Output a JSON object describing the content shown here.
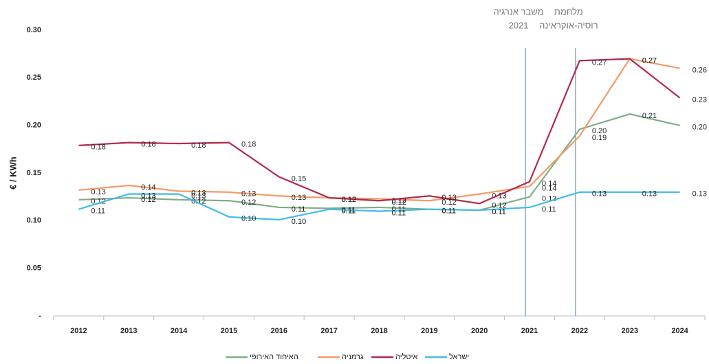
{
  "chart_data": {
    "type": "line",
    "y_label": "€ / KWh",
    "categories": [
      "2012",
      "2013",
      "2014",
      "2015",
      "2016",
      "2017",
      "2018",
      "2019",
      "2020",
      "2021",
      "2022",
      "2023",
      "2024"
    ],
    "ylim": [
      0,
      0.3
    ],
    "yticks": [
      {
        "value": 0,
        "label": "-"
      },
      0.05,
      {
        "value": 0.1,
        "label": "0.10"
      },
      0.15,
      {
        "value": 0.2,
        "label": "0.20"
      },
      0.25,
      {
        "value": 0.3,
        "label": "0.30"
      }
    ],
    "series": [
      {
        "name": "האיחוד האירופי",
        "color": "#7fae84",
        "values": [
          0.122,
          0.124,
          0.122,
          0.121,
          0.114,
          0.113,
          0.114,
          0.112,
          0.111,
          0.125,
          0.196,
          0.212,
          0.2
        ],
        "value_labels": [
          "0.12",
          "0.12",
          "0.12",
          "0.12",
          "0.11",
          "0.11",
          "0.11",
          "0.11",
          "0.11",
          "0.13",
          "0.20",
          "0.21",
          "0.20"
        ]
      },
      {
        "name": "גרמניה",
        "color": "#f59a64",
        "values": [
          0.132,
          0.137,
          0.131,
          0.13,
          0.126,
          0.124,
          0.123,
          0.121,
          0.128,
          0.136,
          0.189,
          0.27,
          0.26
        ],
        "value_labels": [
          "0.13",
          "0.14",
          "0.13",
          "0.13",
          "0.13",
          "0.12",
          "0.12",
          "0.12",
          "0.13",
          "0.14",
          "0.19",
          "0.27",
          "0.26"
        ]
      },
      {
        "name": "איטליה",
        "color": "#b3294c",
        "values": [
          0.179,
          0.182,
          0.181,
          0.182,
          0.146,
          0.124,
          0.121,
          0.126,
          0.118,
          0.141,
          0.268,
          0.27,
          0.229
        ],
        "value_labels": [
          "0.18",
          "0.18",
          "0.18",
          "0.18",
          "0.15",
          "0.12",
          "0.12",
          "0.13",
          "0.12",
          "0.14",
          "0.27",
          "0.27",
          "0.23"
        ]
      },
      {
        "name": "ישראל",
        "color": "#3fbbe9",
        "values": [
          0.112,
          0.128,
          0.128,
          0.104,
          0.101,
          0.112,
          0.11,
          0.112,
          0.111,
          0.114,
          0.13,
          0.13,
          0.13
        ],
        "value_labels": [
          "0.11",
          "0.13",
          "0.13",
          "0.10",
          "0.10",
          "0.11",
          "0.11",
          "0.11",
          "0.11",
          "0.11",
          "0.13",
          "0.13",
          "0.13"
        ]
      }
    ],
    "annotations": [
      {
        "x": "2021",
        "lines": [
          "משבר אנרגיה",
          "2021"
        ]
      },
      {
        "x": "2022",
        "lines": [
          "מלחמת",
          "רוסיה-אוקראינה"
        ]
      }
    ],
    "legend": "bottom"
  }
}
